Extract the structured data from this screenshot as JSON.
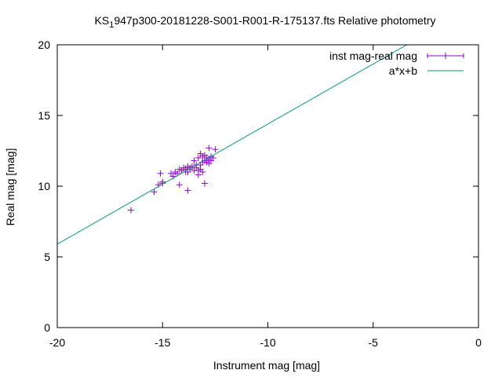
{
  "chart_data": {
    "type": "scatter",
    "title": {
      "prefix": "KS",
      "subscript": "1",
      "rest": "947p300-20181228-S001-R001-R-175137.fts Relative photometry"
    },
    "xlabel": "Instrument mag [mag]",
    "ylabel": "Real mag [mag]",
    "xlim": [
      -20,
      0
    ],
    "ylim": [
      0,
      20
    ],
    "xticks": [
      -20,
      -15,
      -10,
      -5,
      0
    ],
    "yticks": [
      0,
      5,
      10,
      15,
      20
    ],
    "xtick_labels": [
      "-20",
      "-15",
      "-10",
      "-5",
      "0"
    ],
    "ytick_labels": [
      "0",
      "5",
      "10",
      "15",
      "20"
    ],
    "grid": false,
    "legend_position": "top-right",
    "series": [
      {
        "name": "inst mag-real mag",
        "type": "scatter",
        "color": "#9400d3",
        "marker": "plus",
        "x": [
          -16.5,
          -15.4,
          -15.2,
          -15.1,
          -15.0,
          -15.0,
          -14.6,
          -14.5,
          -14.4,
          -14.3,
          -14.2,
          -14.2,
          -14.1,
          -14.0,
          -13.9,
          -13.9,
          -13.8,
          -13.8,
          -13.8,
          -13.7,
          -13.7,
          -13.6,
          -13.5,
          -13.5,
          -13.4,
          -13.4,
          -13.3,
          -13.3,
          -13.3,
          -13.2,
          -13.2,
          -13.2,
          -13.1,
          -13.1,
          -13.1,
          -13.0,
          -13.0,
          -13.0,
          -12.9,
          -12.9,
          -12.8,
          -12.8,
          -12.8,
          -12.7,
          -12.7,
          -12.6,
          -12.5
        ],
        "y": [
          8.3,
          9.6,
          10.1,
          10.9,
          10.2,
          10.3,
          10.9,
          10.7,
          11.0,
          10.9,
          11.2,
          10.1,
          11.1,
          11.3,
          11.2,
          11.0,
          11.4,
          11.0,
          9.7,
          11.3,
          11.2,
          11.4,
          11.8,
          11.1,
          11.5,
          11.3,
          12.0,
          11.1,
          10.8,
          12.3,
          11.5,
          11.2,
          12.1,
          11.7,
          11.0,
          12.2,
          11.8,
          10.2,
          12.0,
          11.7,
          12.7,
          11.9,
          11.6,
          12.1,
          11.8,
          12.0,
          12.6
        ]
      },
      {
        "name": "a*x+b",
        "type": "line",
        "color": "#009e73",
        "x": [
          -20,
          -3.4
        ],
        "y": [
          5.9,
          20.0
        ]
      }
    ]
  }
}
